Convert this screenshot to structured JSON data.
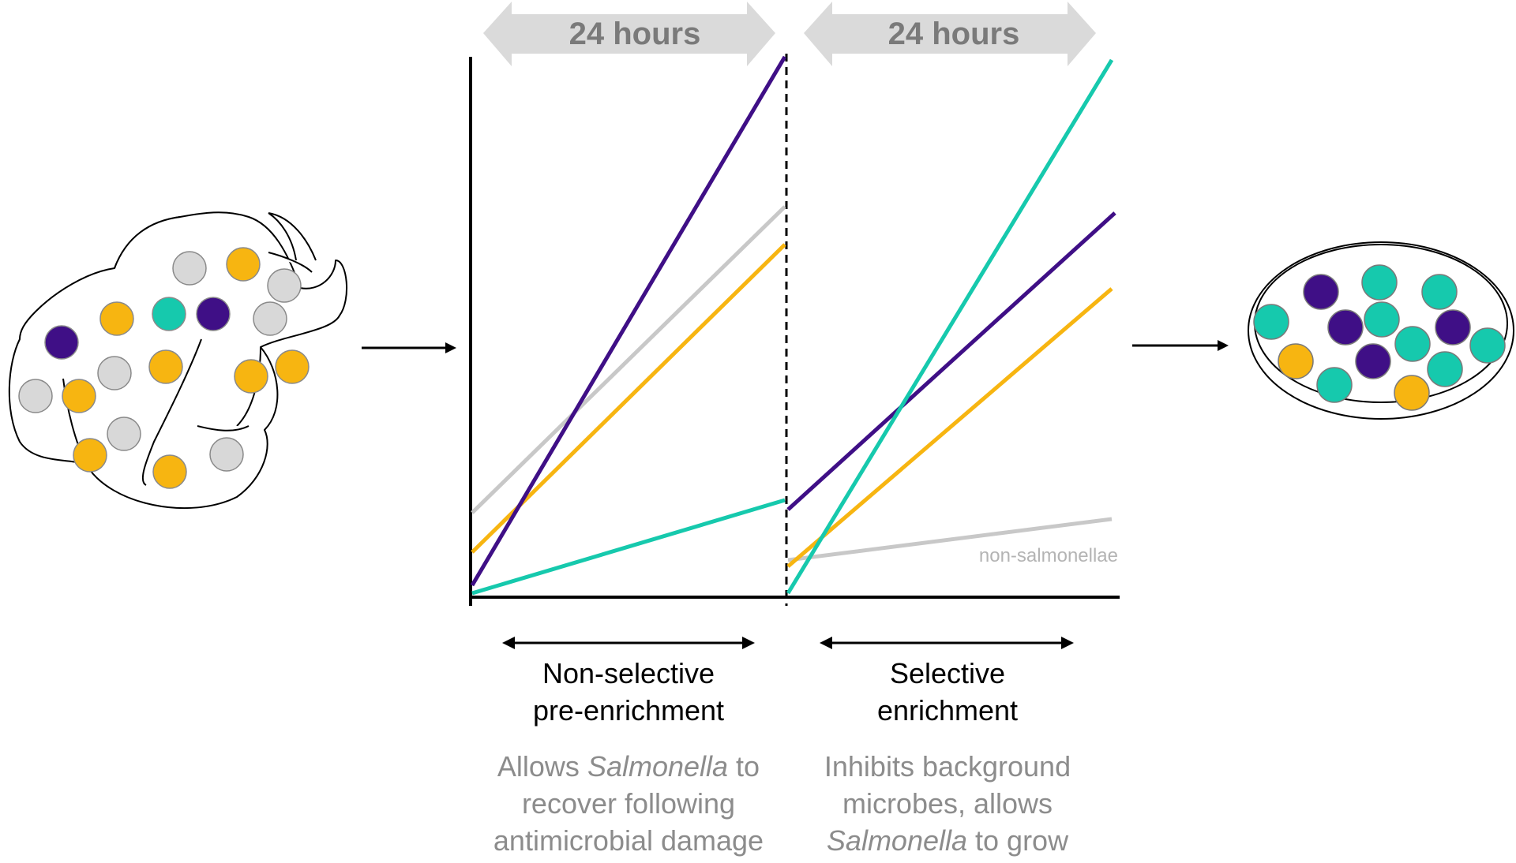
{
  "colors": {
    "purple": "#3f0f86",
    "teal": "#16c9ad",
    "yellow": "#f7b511",
    "gray": "#c8c8c8",
    "arrow_gray": "#dadada",
    "desc_gray": "#8c8c8c"
  },
  "time_labels": {
    "phase1": "24 hours",
    "phase2": "24 hours"
  },
  "stage_labels": {
    "pre_enrichment": {
      "line1": "Non-selective",
      "line2": "pre-enrichment"
    },
    "selective": {
      "line1": "Selective",
      "line2": "enrichment"
    }
  },
  "descriptions": {
    "pre_enrichment": {
      "line1_pre": "Allows ",
      "line1_italic": "Salmonella",
      "line1_post": " to",
      "line2": "recover following",
      "line3": "antimicrobial damage"
    },
    "selective": {
      "line1": "Inhibits background",
      "line2": "microbes, allows",
      "line3_italic": "Salmonella",
      "line3_post": " to grow"
    }
  },
  "growth_lines": {
    "non_salmonellae_label": "non-salmonellae"
  },
  "icons": {
    "sample": "chicken-carcass-icon",
    "plate": "petri-dish-icon"
  }
}
